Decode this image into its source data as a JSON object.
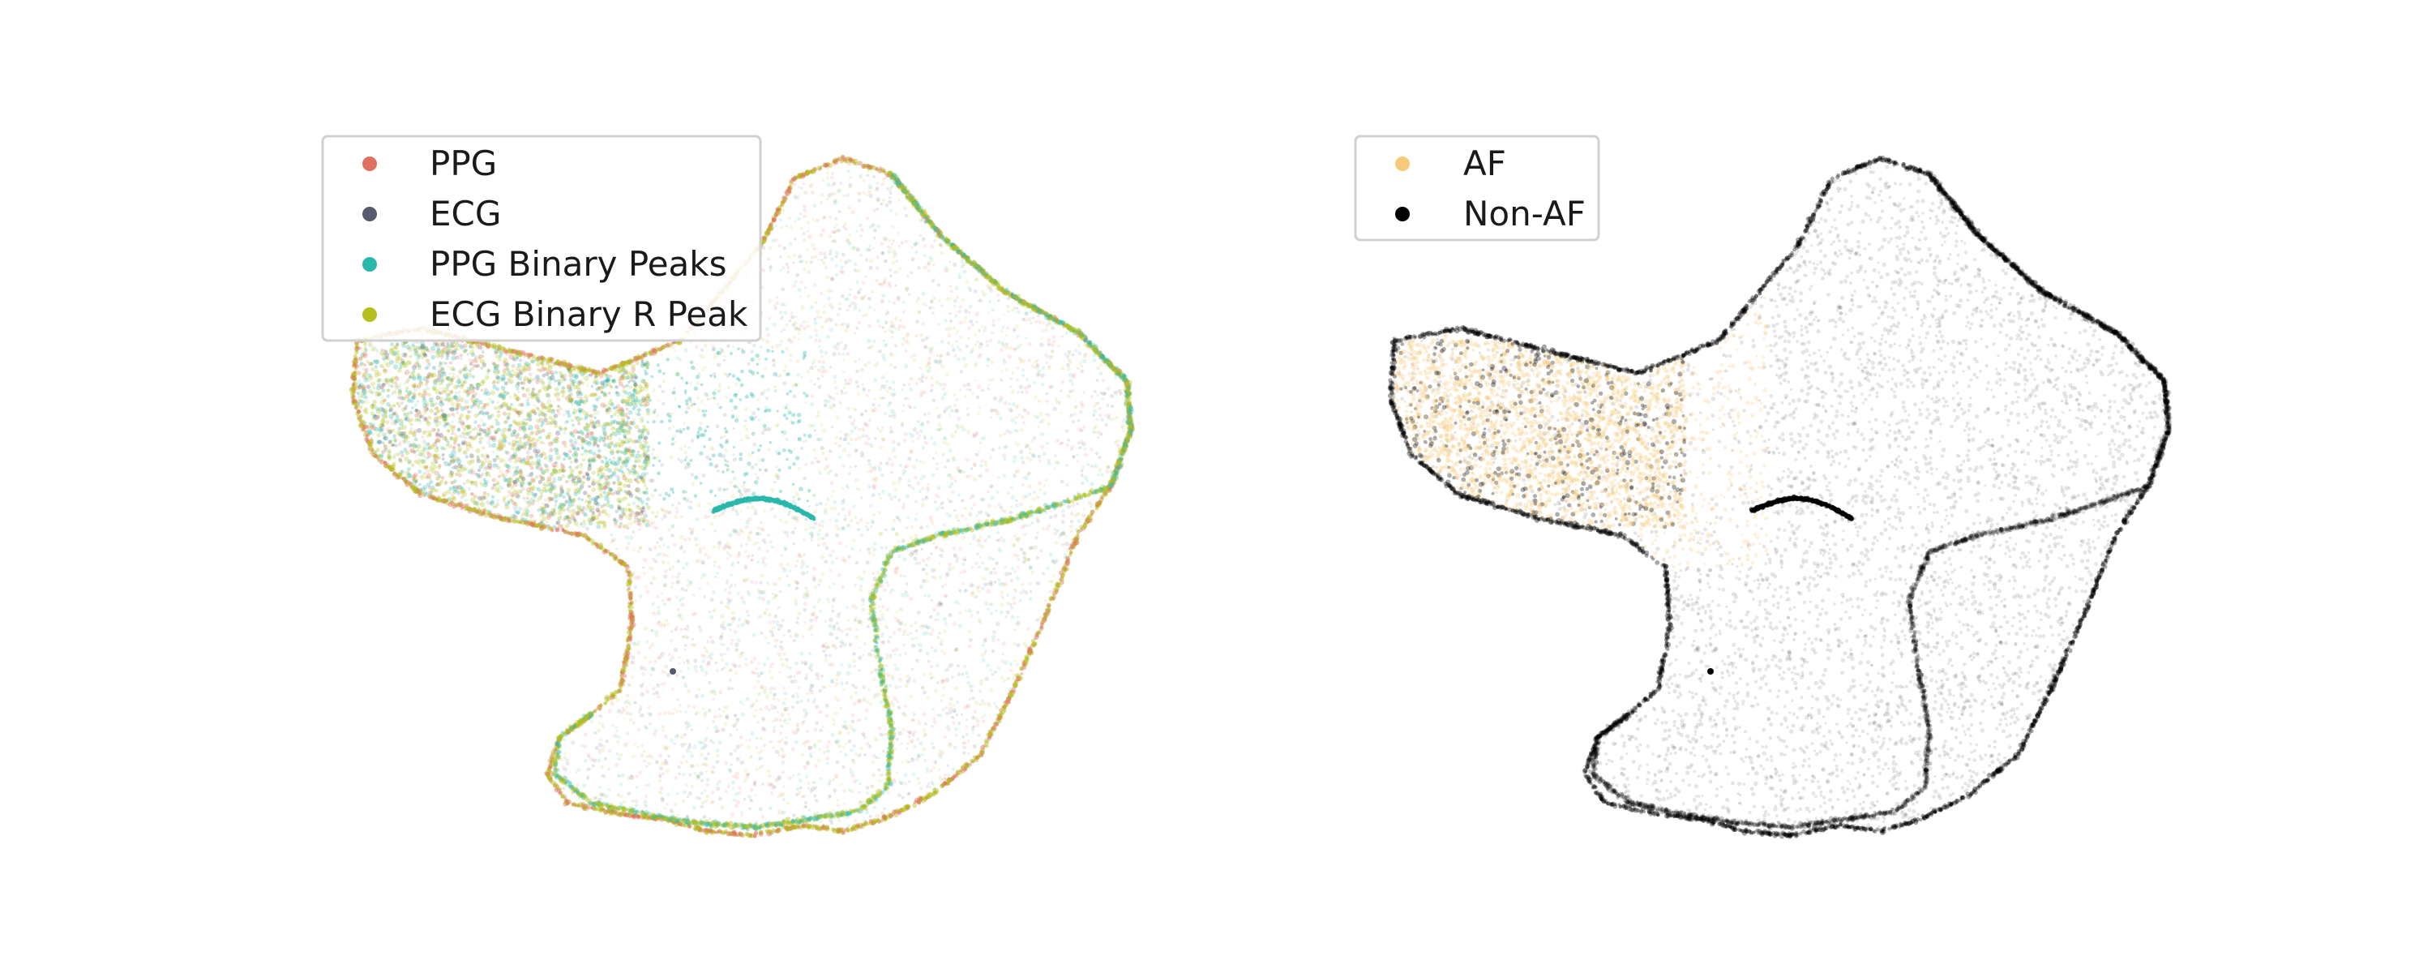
{
  "chart_data": [
    {
      "type": "scatter",
      "title": "",
      "xlabel": "",
      "ylabel": "",
      "axes_visible": false,
      "grid": false,
      "legend_placement": "top-left",
      "series": [
        {
          "name": "PPG",
          "color": "#e07060"
        },
        {
          "name": "ECG",
          "color": "#555a6e"
        },
        {
          "name": "PPG Binary Peaks",
          "color": "#2ab7ac"
        },
        {
          "name": "ECG Binary R Peak",
          "color": "#b5bf1f"
        }
      ]
    },
    {
      "type": "scatter",
      "title": "",
      "xlabel": "",
      "ylabel": "",
      "axes_visible": false,
      "grid": false,
      "legend_placement": "top-left",
      "series": [
        {
          "name": "AF",
          "color": "#f7c978"
        },
        {
          "name": "Non-AF",
          "color": "#000000"
        }
      ]
    }
  ]
}
